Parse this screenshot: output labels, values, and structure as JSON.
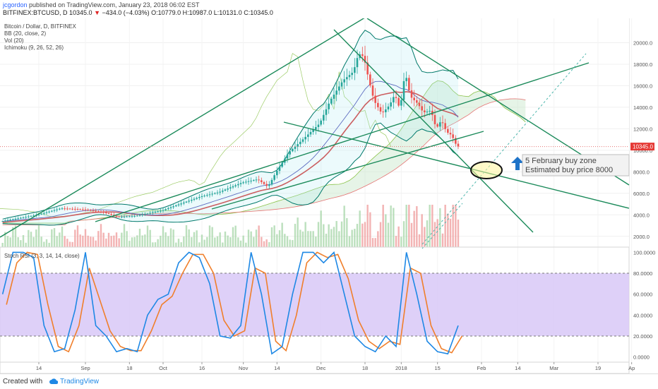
{
  "header": {
    "author": "jcgordon",
    "published_text": "published on TradingView.com, January 23, 2018 06:02 EST",
    "symbol": "BITFINEX:BTCUSD, D",
    "last_price": "10345.0",
    "change": "−434.0 (−4.03%)",
    "open": "O:10779.0",
    "high": "H:10987.0",
    "low": "L:10131.0",
    "close": "C:10345.0"
  },
  "footer": {
    "created_with": "Created with",
    "brand": "TradingView"
  },
  "chart_data": [
    {
      "type": "candlestick",
      "title": "Bitcoin / Dollar, D, BITFINEX",
      "indicators": [
        "BB (20, close, 2)",
        "Vol (20)",
        "Ichimoku (9, 26, 52, 26)"
      ],
      "x_tick_labels": [
        "14",
        "Sep",
        "18",
        "Oct",
        "16",
        "Nov",
        "14",
        "Dec",
        "18",
        "2018",
        "15",
        "Feb",
        "14",
        "Mar",
        "19",
        "Ap"
      ],
      "x_tick_days": [
        14,
        32,
        49,
        62,
        77,
        93,
        106,
        123,
        140,
        154,
        168,
        185,
        199,
        213,
        230,
        243
      ],
      "x_range_days": [
        -1,
        242
      ],
      "y_tick_labels": [
        "2000.0",
        "4000.0",
        "6000.0",
        "8000.0",
        "10000.0",
        "12000.0",
        "14000.0",
        "16000.0",
        "18000.0",
        "20000.0"
      ],
      "y_ticks": [
        2000,
        4000,
        6000,
        8000,
        10000,
        12000,
        14000,
        16000,
        18000,
        20000
      ],
      "ylim": [
        1000,
        22000
      ],
      "last_price": 10345,
      "last_price_label": "10345.0",
      "price_path_days": [
        0,
        14,
        23,
        32,
        40,
        45,
        52,
        62,
        70,
        77,
        84,
        93,
        99,
        103,
        106,
        111,
        116,
        123,
        127,
        132,
        136,
        138,
        140,
        142,
        144,
        147,
        150,
        152,
        154,
        156,
        158,
        161,
        163,
        166,
        168,
        170,
        172,
        174,
        176
      ],
      "price_path_values": [
        3400,
        4000,
        4600,
        4500,
        4200,
        3800,
        3900,
        4400,
        5100,
        5700,
        6100,
        7000,
        7300,
        6600,
        7900,
        9800,
        10900,
        12500,
        14600,
        16500,
        17300,
        19000,
        18700,
        16500,
        14600,
        13400,
        14200,
        15200,
        13800,
        17300,
        15000,
        14300,
        13500,
        13700,
        12000,
        12800,
        11700,
        11400,
        10345
      ],
      "annotations": {
        "zone_line1": "5 February buy zone",
        "zone_line2": "Estimated buy price 8000"
      }
    },
    {
      "type": "line",
      "title": "Stoch RSI (3, 3, 14, 14, close)",
      "y_tick_labels": [
        "100.0000",
        "80.0000",
        "60.0000",
        "40.0000",
        "20.0000",
        "0.0000"
      ],
      "y_ticks": [
        100,
        80,
        60,
        40,
        20,
        0
      ],
      "ylim": [
        -5,
        105
      ],
      "band": [
        20,
        80
      ],
      "k_days": [
        0,
        4,
        8,
        12,
        16,
        20,
        24,
        28,
        32,
        36,
        40,
        44,
        48,
        52,
        56,
        60,
        64,
        68,
        72,
        76,
        80,
        84,
        88,
        92,
        96,
        100,
        104,
        108,
        112,
        116,
        120,
        124,
        128,
        132,
        136,
        140,
        144,
        148,
        152,
        156,
        160,
        164,
        168,
        172,
        176
      ],
      "k_values": [
        60,
        100,
        100,
        95,
        30,
        5,
        8,
        45,
        100,
        30,
        20,
        5,
        8,
        5,
        40,
        55,
        60,
        90,
        100,
        95,
        70,
        20,
        18,
        30,
        100,
        60,
        3,
        10,
        60,
        100,
        100,
        90,
        100,
        60,
        20,
        10,
        5,
        20,
        10,
        100,
        60,
        15,
        5,
        3,
        30
      ],
      "d_values": [
        50,
        90,
        100,
        98,
        50,
        10,
        5,
        30,
        85,
        55,
        25,
        10,
        6,
        6,
        25,
        50,
        58,
        80,
        98,
        98,
        80,
        35,
        20,
        25,
        85,
        80,
        15,
        6,
        40,
        90,
        100,
        95,
        98,
        75,
        35,
        15,
        8,
        15,
        12,
        85,
        80,
        30,
        8,
        4,
        20
      ]
    }
  ]
}
